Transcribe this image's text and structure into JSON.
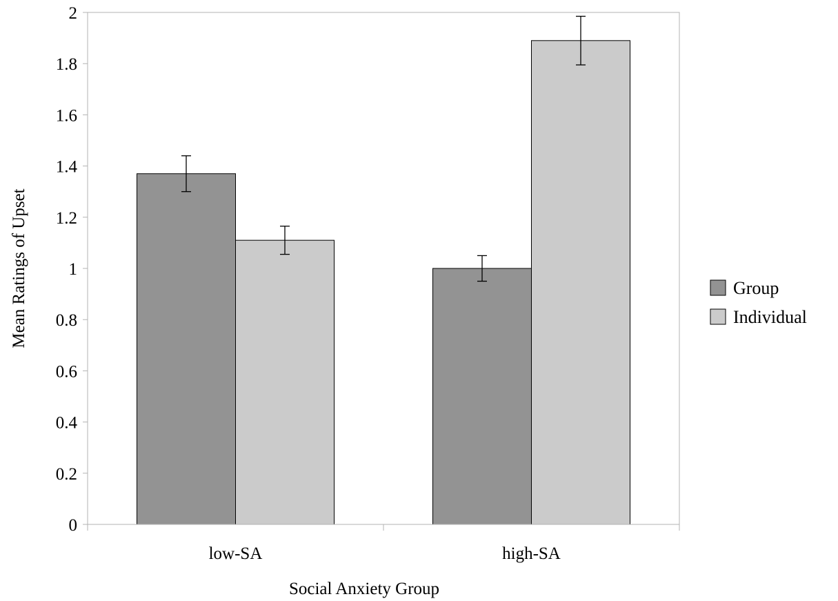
{
  "chart_data": {
    "type": "bar",
    "title": "",
    "xlabel": "Social Anxiety Group",
    "ylabel": "Mean Ratings of Upset",
    "categories": [
      "low-SA",
      "high-SA"
    ],
    "ylim": [
      0,
      2
    ],
    "yticks": [
      0,
      0.2,
      0.4,
      0.6,
      0.8,
      1,
      1.2,
      1.4,
      1.6,
      1.8,
      2
    ],
    "ytick_labels": [
      "0",
      "0.2",
      "0.4",
      "0.6",
      "0.8",
      "1",
      "1.2",
      "1.4",
      "1.6",
      "1.8",
      "2"
    ],
    "series": [
      {
        "name": "Group",
        "color": "#939393",
        "values": [
          1.37,
          1.0
        ],
        "error": [
          0.07,
          0.05
        ]
      },
      {
        "name": "Individual",
        "color": "#cbcbcb",
        "values": [
          1.11,
          1.89
        ],
        "error": [
          0.055,
          0.095
        ]
      }
    ],
    "grid": false,
    "legend_position": "right",
    "error_bars": true
  }
}
